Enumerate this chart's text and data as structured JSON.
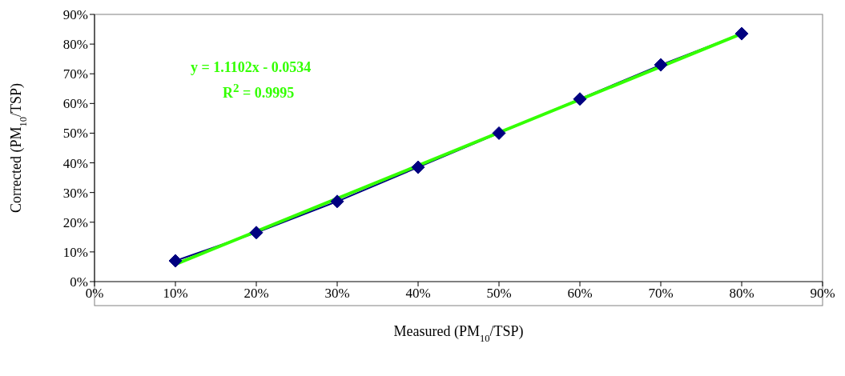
{
  "chart_data": {
    "type": "line",
    "xlabel": "Measured (PM$_{10}$/TSP)",
    "ylabel": "Corrected (PM$_{10}$/TSP)",
    "x": [
      10,
      20,
      30,
      40,
      50,
      60,
      70,
      80
    ],
    "series": [
      {
        "color": "#000080",
        "values": [
          7,
          16.5,
          27,
          38.5,
          50,
          61.5,
          73,
          83.5
        ],
        "marker": "diamond"
      },
      {
        "type": "line",
        "color": "#33ff00",
        "x": [
          10,
          80
        ],
        "values": [
          5.8,
          83.5
        ],
        "marker": "none"
      }
    ],
    "annotations": [
      "y = 1.1102x - 0.0534",
      "R$^{2}$ = 0.9995"
    ],
    "xlim": [
      0,
      90
    ],
    "ylim": [
      0,
      90
    ],
    "xticks": [
      {
        "value": 0,
        "label": "0%"
      },
      {
        "value": 10,
        "label": "10%"
      },
      {
        "value": 20,
        "label": "20%"
      },
      {
        "value": 30,
        "label": "30%"
      },
      {
        "value": 40,
        "label": "40%"
      },
      {
        "value": 50,
        "label": "50%"
      },
      {
        "value": 60,
        "label": "60%"
      },
      {
        "value": 70,
        "label": "70%"
      },
      {
        "value": 80,
        "label": "80%"
      },
      {
        "value": 90,
        "label": "90%"
      }
    ],
    "yticks": [
      {
        "value": 0,
        "label": "0%"
      },
      {
        "value": 10,
        "label": "10%"
      },
      {
        "value": 20,
        "label": "20%"
      },
      {
        "value": 30,
        "label": "30%"
      },
      {
        "value": 40,
        "label": "40%"
      },
      {
        "value": 50,
        "label": "50%"
      },
      {
        "value": 60,
        "label": "60%"
      },
      {
        "value": 70,
        "label": "70%"
      },
      {
        "value": 80,
        "label": "80%"
      },
      {
        "value": 90,
        "label": "90%"
      }
    ],
    "grid": false,
    "legend": false
  }
}
